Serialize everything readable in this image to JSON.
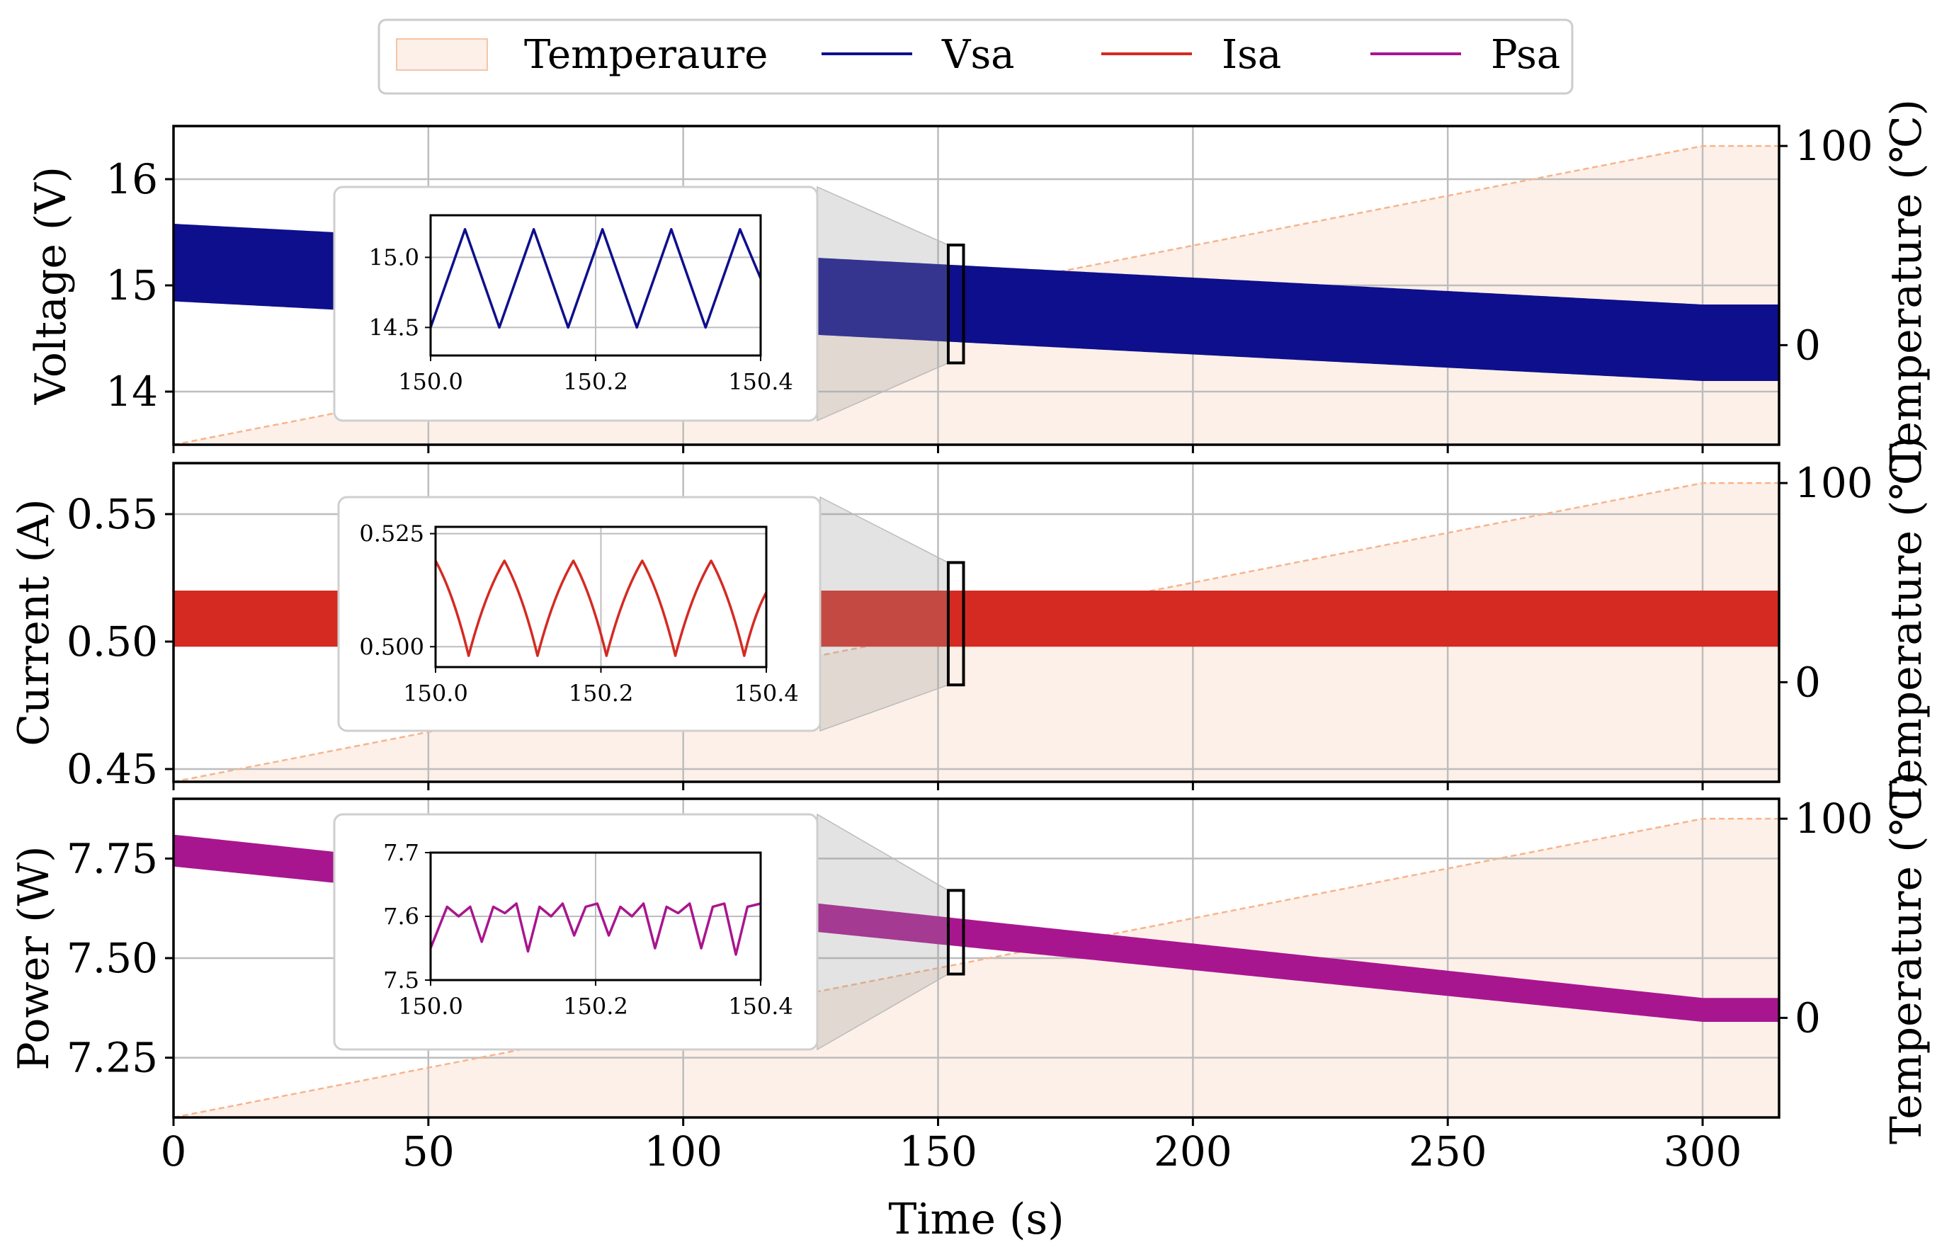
{
  "chart_data": {
    "type": "line",
    "xlabel": "Time (s)",
    "xlim": [
      0,
      315
    ],
    "xticks": [
      0,
      50,
      100,
      150,
      200,
      250,
      300
    ],
    "colors": {
      "temperature_fill": "#fdf0e8",
      "temperature_line": "#f5b48e",
      "vsa": "#0e0f8c",
      "isa": "#d42a22",
      "psa": "#a8168f",
      "grid": "#bdbdbd"
    },
    "legend": [
      {
        "key": "temperature",
        "label": "Temperaure"
      },
      {
        "key": "vsa",
        "label": "Vsa"
      },
      {
        "key": "isa",
        "label": "Isa"
      },
      {
        "key": "psa",
        "label": "Psa"
      }
    ],
    "temperature": {
      "ylabel": "Temperature (℃)",
      "ylim": [
        -50,
        110
      ],
      "yticks": [
        0,
        100
      ],
      "x": [
        0,
        300,
        315
      ],
      "values": [
        -50,
        100,
        100
      ]
    },
    "panels": [
      {
        "key": "vsa",
        "ylabel": "Voltage (V)",
        "ylim": [
          13.5,
          16.5
        ],
        "yticks": [
          14,
          15,
          16
        ],
        "tick_labels": [
          "14",
          "15",
          "16"
        ],
        "band_x": [
          0,
          300,
          315
        ],
        "band_upper": [
          15.58,
          14.82,
          14.82
        ],
        "band_lower": [
          14.85,
          14.1,
          14.1
        ],
        "zoom_box_x": [
          152,
          155
        ],
        "zoom_box_y": [
          14.27,
          15.38
        ],
        "inset": {
          "xlim": [
            150.0,
            150.4
          ],
          "xticks": [
            150.0,
            150.2,
            150.4
          ],
          "xtick_labels": [
            "150.0",
            "150.2",
            "150.4"
          ],
          "ylim": [
            14.3,
            15.3
          ],
          "yticks": [
            14.5,
            15.0
          ],
          "ytick_labels": [
            "14.5",
            "15.0"
          ],
          "x": [
            150.0,
            150.0417,
            150.0833,
            150.125,
            150.1667,
            150.2083,
            150.25,
            150.2917,
            150.3333,
            150.375,
            150.4
          ],
          "y": [
            14.5,
            15.2,
            14.5,
            15.2,
            14.5,
            15.2,
            14.5,
            15.2,
            14.5,
            15.2,
            14.85
          ]
        }
      },
      {
        "key": "isa",
        "ylabel": "Current (A)",
        "ylim": [
          0.445,
          0.57
        ],
        "yticks": [
          0.45,
          0.5,
          0.55
        ],
        "tick_labels": [
          "0.45",
          "0.50",
          "0.55"
        ],
        "band_x": [
          0,
          315
        ],
        "band_upper": [
          0.52,
          0.52
        ],
        "band_lower": [
          0.498,
          0.498
        ],
        "zoom_box_x": [
          152,
          155
        ],
        "zoom_box_y": [
          0.483,
          0.531
        ],
        "inset": {
          "xlim": [
            150.0,
            150.4
          ],
          "xticks": [
            150.0,
            150.2,
            150.4
          ],
          "xtick_labels": [
            "150.0",
            "150.2",
            "150.4"
          ],
          "ylim": [
            0.4955,
            0.5265
          ],
          "yticks": [
            0.5,
            0.525
          ],
          "ytick_labels": [
            "0.500",
            "0.525"
          ],
          "x": [
            150.0,
            150.04,
            150.0833,
            150.1233,
            150.1667,
            150.2067,
            150.25,
            150.29,
            150.3333,
            150.3733,
            150.4
          ],
          "y": [
            0.519,
            0.498,
            0.519,
            0.498,
            0.519,
            0.498,
            0.519,
            0.498,
            0.519,
            0.498,
            0.512
          ]
        }
      },
      {
        "key": "psa",
        "ylabel": "Power (W)",
        "ylim": [
          7.1,
          7.9
        ],
        "yticks": [
          7.25,
          7.5,
          7.75
        ],
        "tick_labels": [
          "7.25",
          "7.50",
          "7.75"
        ],
        "band_x": [
          0,
          300,
          315
        ],
        "band_upper": [
          7.81,
          7.4,
          7.4
        ],
        "band_lower": [
          7.73,
          7.34,
          7.34
        ],
        "zoom_box_x": [
          152,
          155
        ],
        "zoom_box_y": [
          7.46,
          7.67
        ],
        "inset": {
          "xlim": [
            150.0,
            150.4
          ],
          "xticks": [
            150.0,
            150.2,
            150.4
          ],
          "xtick_labels": [
            "150.0",
            "150.2",
            "150.4"
          ],
          "ylim": [
            7.5,
            7.7
          ],
          "yticks": [
            7.5,
            7.6,
            7.7
          ],
          "ytick_labels": [
            "7.5",
            "7.6",
            "7.7"
          ],
          "x": [
            150.0,
            150.02,
            150.034,
            150.048,
            150.062,
            150.076,
            150.09,
            150.104,
            150.118,
            150.132,
            150.146,
            150.16,
            150.174,
            150.188,
            150.202,
            150.216,
            150.23,
            150.244,
            150.258,
            150.272,
            150.286,
            150.3,
            150.314,
            150.328,
            150.342,
            150.356,
            150.37,
            150.384,
            150.4
          ],
          "y": [
            7.55,
            7.615,
            7.6,
            7.615,
            7.56,
            7.615,
            7.605,
            7.62,
            7.545,
            7.615,
            7.6,
            7.62,
            7.57,
            7.615,
            7.62,
            7.57,
            7.615,
            7.6,
            7.62,
            7.55,
            7.615,
            7.605,
            7.62,
            7.55,
            7.615,
            7.62,
            7.54,
            7.615,
            7.62
          ]
        }
      }
    ]
  }
}
